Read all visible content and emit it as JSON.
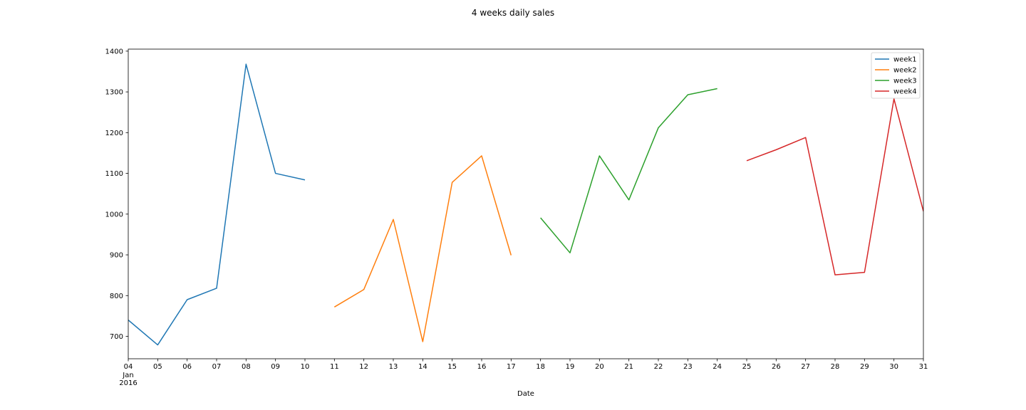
{
  "chart_data": {
    "type": "line",
    "title": "4 weeks daily sales",
    "xlabel": "Date",
    "ylabel": "",
    "x_range": [
      "2016-01-04",
      "2016-01-31"
    ],
    "ylim": [
      645,
      1405
    ],
    "x_tick_labels": [
      "04",
      "05",
      "06",
      "07",
      "08",
      "09",
      "10",
      "11",
      "12",
      "13",
      "14",
      "15",
      "16",
      "17",
      "18",
      "19",
      "20",
      "21",
      "22",
      "23",
      "24",
      "25",
      "26",
      "27",
      "28",
      "29",
      "30",
      "31"
    ],
    "x_tick_sublabel": [
      "Jan",
      "2016"
    ],
    "y_ticks": [
      700,
      800,
      900,
      1000,
      1100,
      1200,
      1300,
      1400
    ],
    "grid": false,
    "legend_position": "top-right",
    "series": [
      {
        "name": "week1",
        "color": "#1f77b4",
        "x": [
          "2016-01-04",
          "2016-01-05",
          "2016-01-06",
          "2016-01-07",
          "2016-01-08",
          "2016-01-09",
          "2016-01-10"
        ],
        "values": [
          740,
          679,
          790,
          818,
          1368,
          1100,
          1084
        ]
      },
      {
        "name": "week2",
        "color": "#ff7f0e",
        "x": [
          "2016-01-11",
          "2016-01-12",
          "2016-01-13",
          "2016-01-14",
          "2016-01-15",
          "2016-01-16",
          "2016-01-17"
        ],
        "values": [
          772,
          815,
          987,
          687,
          1078,
          1143,
          899
        ]
      },
      {
        "name": "week3",
        "color": "#2ca02c",
        "x": [
          "2016-01-18",
          "2016-01-19",
          "2016-01-20",
          "2016-01-21",
          "2016-01-22",
          "2016-01-23",
          "2016-01-24"
        ],
        "values": [
          991,
          905,
          1143,
          1035,
          1212,
          1293,
          1308
        ]
      },
      {
        "name": "week4",
        "color": "#d62728",
        "x": [
          "2016-01-25",
          "2016-01-26",
          "2016-01-27",
          "2016-01-28",
          "2016-01-29",
          "2016-01-30",
          "2016-01-31"
        ],
        "values": [
          1131,
          1158,
          1188,
          851,
          857,
          1283,
          1007
        ]
      }
    ]
  }
}
